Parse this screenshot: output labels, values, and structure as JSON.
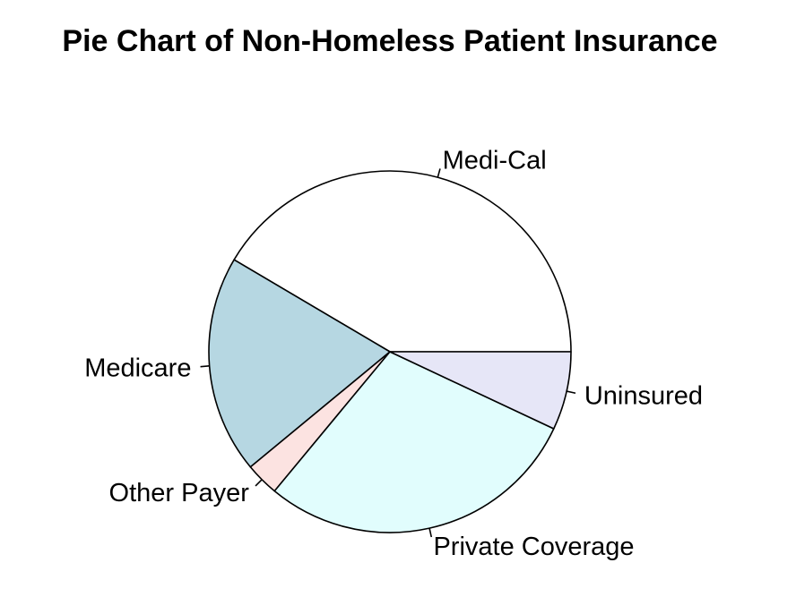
{
  "chart_data": {
    "type": "pie",
    "title": "Pie Chart of Non-Homeless Patient Insurance",
    "start_angle_deg": 0,
    "direction": "counterclockwise",
    "slices": [
      {
        "label": "Medi-Cal",
        "value": 41.5,
        "color": "#FFFFFF"
      },
      {
        "label": "Medicare",
        "value": 19.5,
        "color": "#B6D7E2"
      },
      {
        "label": "Other Payer",
        "value": 3.0,
        "color": "#FCE3E1"
      },
      {
        "label": "Private Coverage",
        "value": 29.0,
        "color": "#E1FDFD"
      },
      {
        "label": "Uninsured",
        "value": 7.0,
        "color": "#E6E6F7"
      }
    ]
  }
}
